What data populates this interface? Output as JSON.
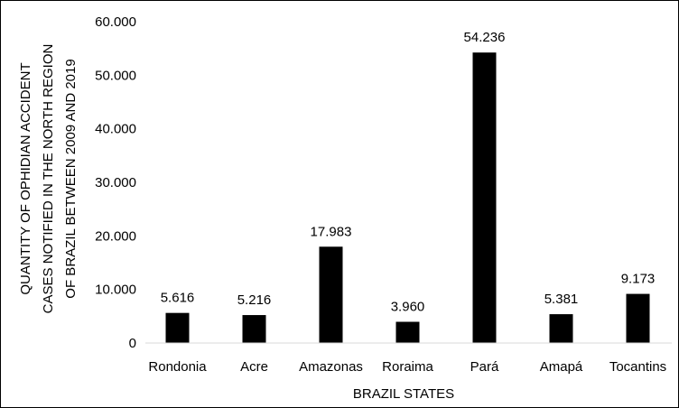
{
  "chart_data": {
    "type": "bar",
    "title": "",
    "xlabel": "BRAZIL STATES",
    "ylabel_lines": [
      "QUANTITY OF OPHIDIAN ACCIDENT",
      "CASES NOTIFIED IN THE NORTH REGION",
      "OF BRAZIL BETWEEN 2009 AND 2019"
    ],
    "categories": [
      "Rondonia",
      "Acre",
      "Amazonas",
      "Roraima",
      "Pará",
      "Amapá",
      "Tocantins"
    ],
    "values": [
      5616,
      5216,
      17983,
      3960,
      54236,
      5381,
      9173
    ],
    "data_labels": [
      "5.616",
      "5.216",
      "17.983",
      "3.960",
      "54.236",
      "5.381",
      "9.173"
    ],
    "ylim": [
      0,
      60000
    ],
    "y_ticks": [
      0,
      10000,
      20000,
      30000,
      40000,
      50000,
      60000
    ],
    "y_tick_labels": [
      "0",
      "10.000",
      "20.000",
      "30.000",
      "40.000",
      "50.000",
      "60.000"
    ],
    "grid": false,
    "legend": "none",
    "bar_color": "#000000"
  }
}
